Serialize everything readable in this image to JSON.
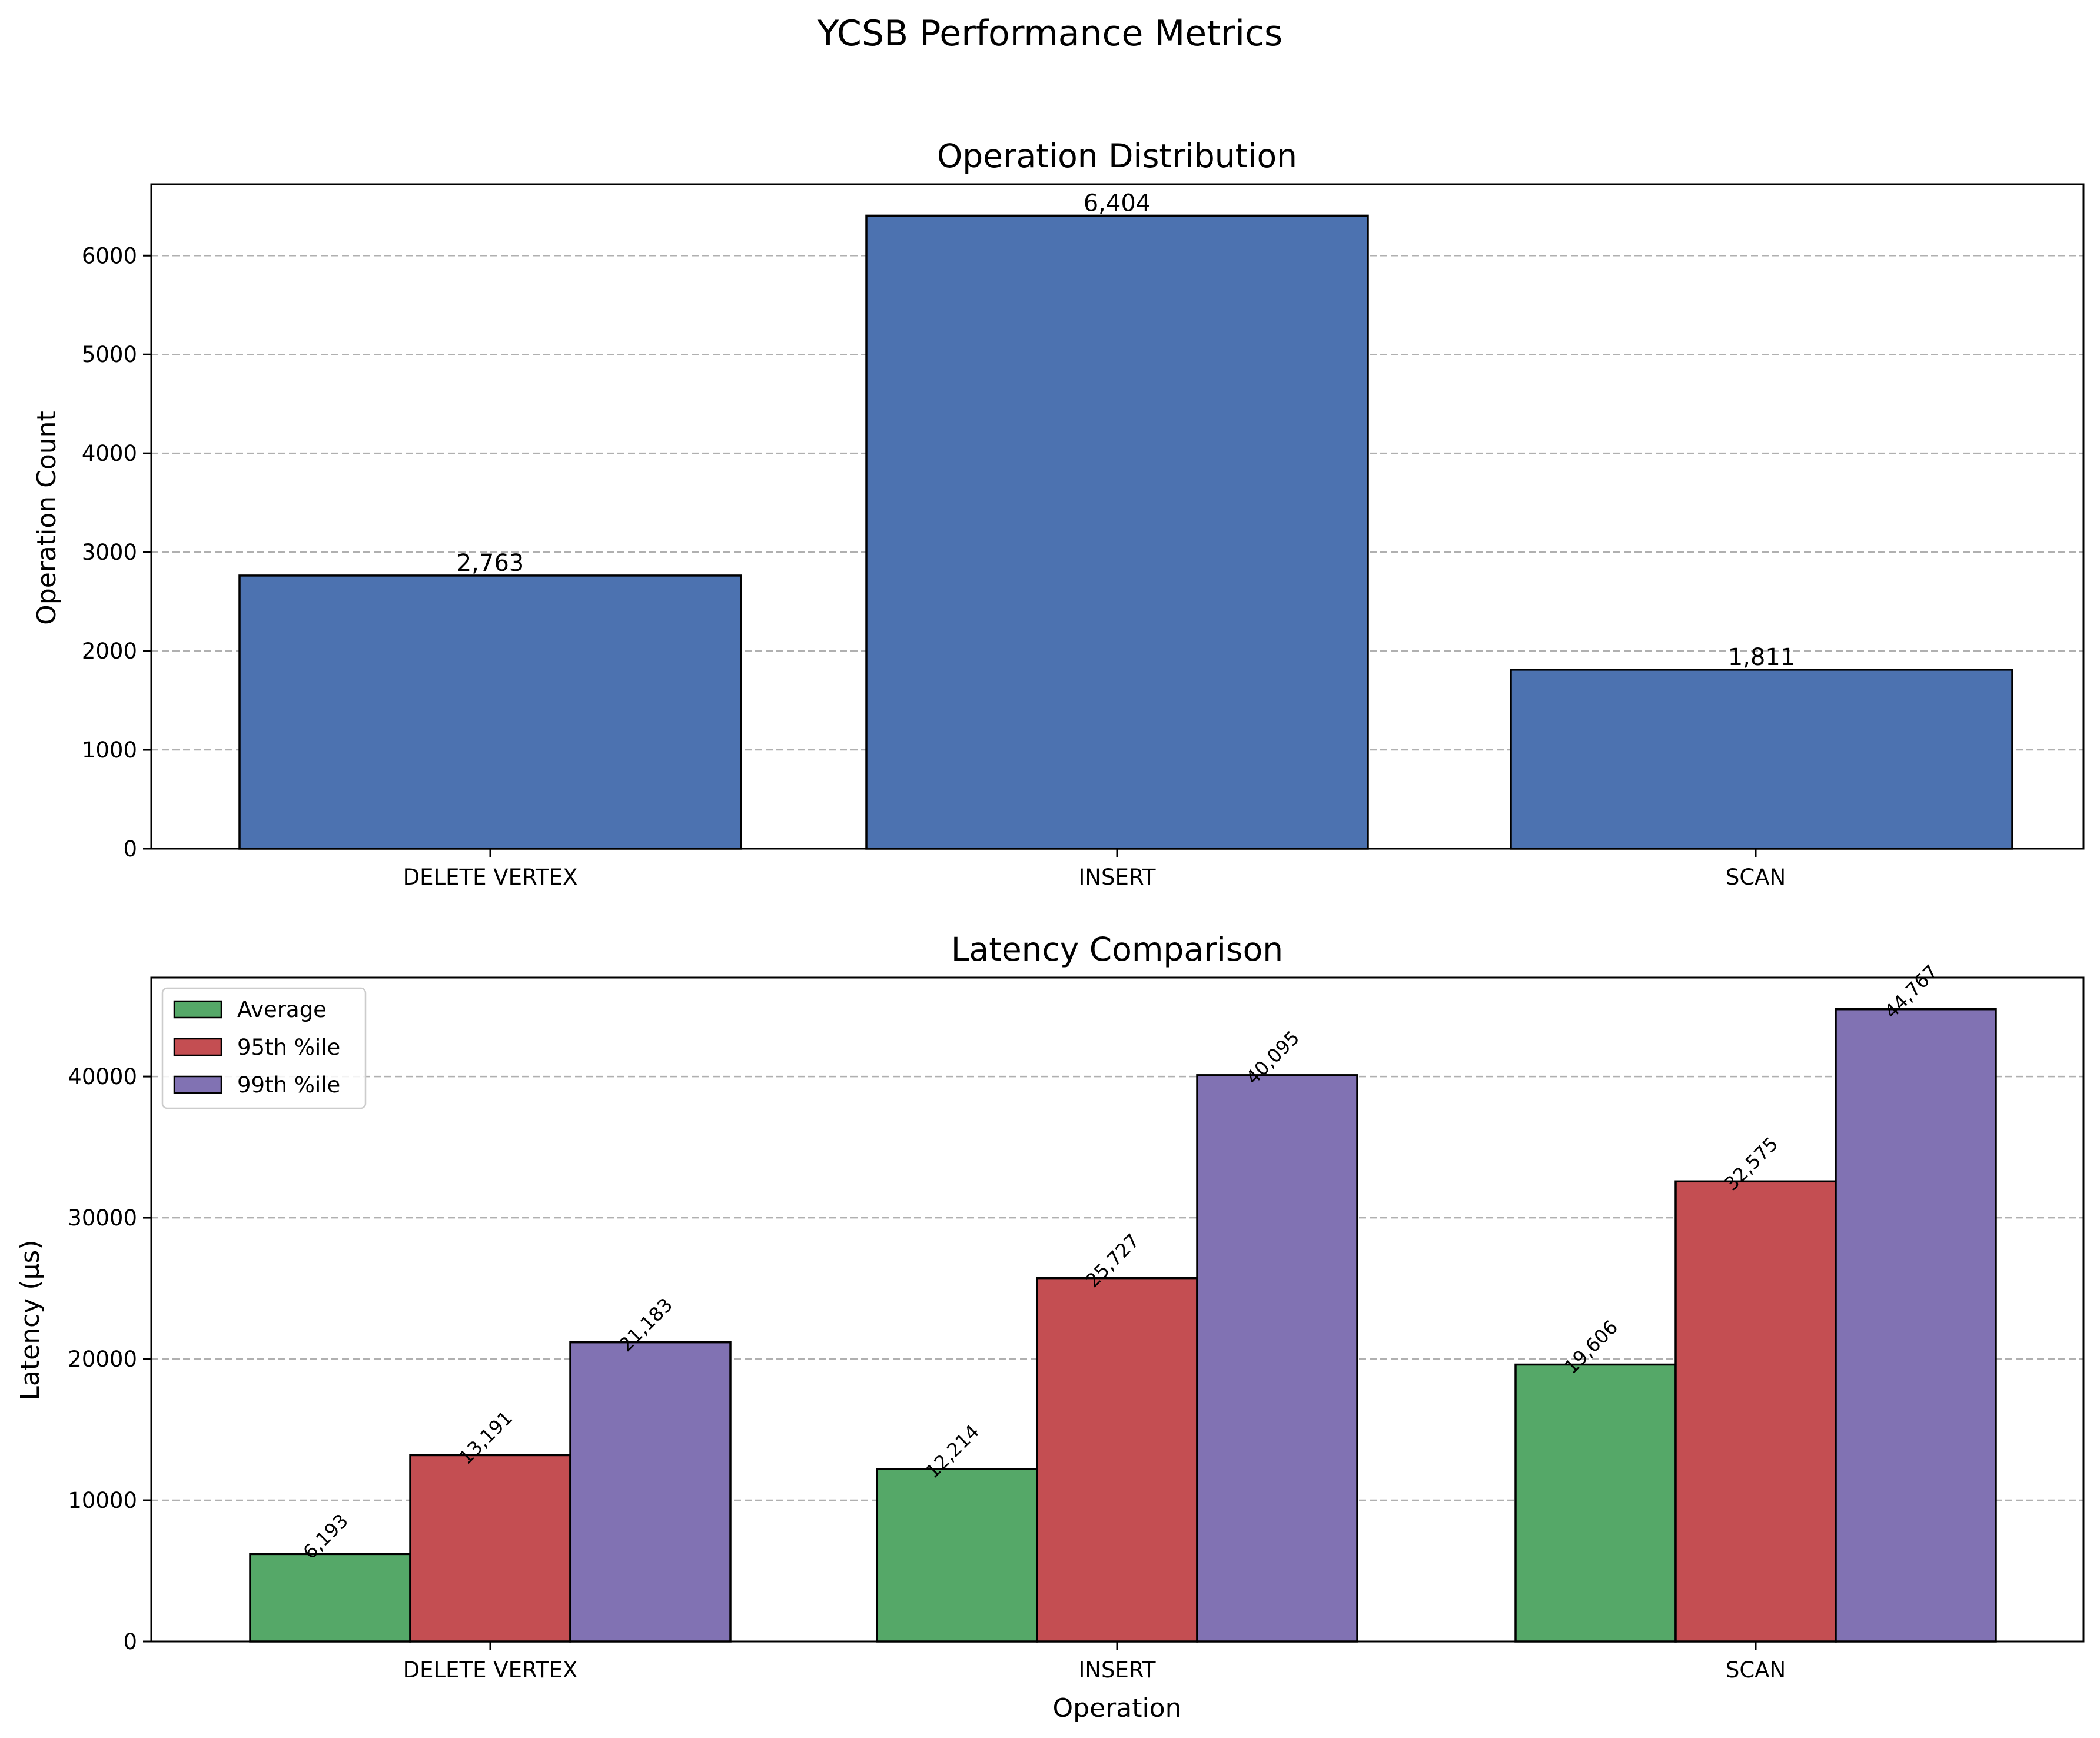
{
  "figure": {
    "suptitle": "YCSB Performance Metrics"
  },
  "chart_data": [
    {
      "type": "bar",
      "title": "Operation Distribution",
      "xlabel": "",
      "ylabel": "Operation Count",
      "categories": [
        "DELETE VERTEX",
        "INSERT",
        "SCAN"
      ],
      "values": [
        2763,
        6404,
        1811
      ],
      "value_labels": [
        "2,763",
        "6,404",
        "1,811"
      ],
      "ylim": [
        0,
        6722
      ],
      "yticks": [
        0,
        1000,
        2000,
        3000,
        4000,
        5000,
        6000
      ],
      "grid": "y-dashed",
      "color": "#4c72b0"
    },
    {
      "type": "bar",
      "title": "Latency Comparison",
      "xlabel": "Operation",
      "ylabel": "Latency (µs)",
      "categories": [
        "DELETE VERTEX",
        "INSERT",
        "SCAN"
      ],
      "series": [
        {
          "name": "Average",
          "color": "#55a868",
          "values": [
            6193,
            12214,
            19606
          ],
          "value_labels": [
            "6,193",
            "12,214",
            "19,606"
          ]
        },
        {
          "name": "95th %ile",
          "color": "#c44e52",
          "values": [
            13191,
            25727,
            32575
          ],
          "value_labels": [
            "13,191",
            "25,727",
            "32,575"
          ]
        },
        {
          "name": "99th %ile",
          "color": "#8172b3",
          "values": [
            21183,
            40095,
            44767
          ],
          "value_labels": [
            "21,183",
            "40,095",
            "44,767"
          ]
        }
      ],
      "ylim": [
        0,
        47005
      ],
      "yticks": [
        0,
        10000,
        20000,
        30000,
        40000
      ],
      "grid": "y-dashed",
      "legend": "top-left"
    }
  ]
}
